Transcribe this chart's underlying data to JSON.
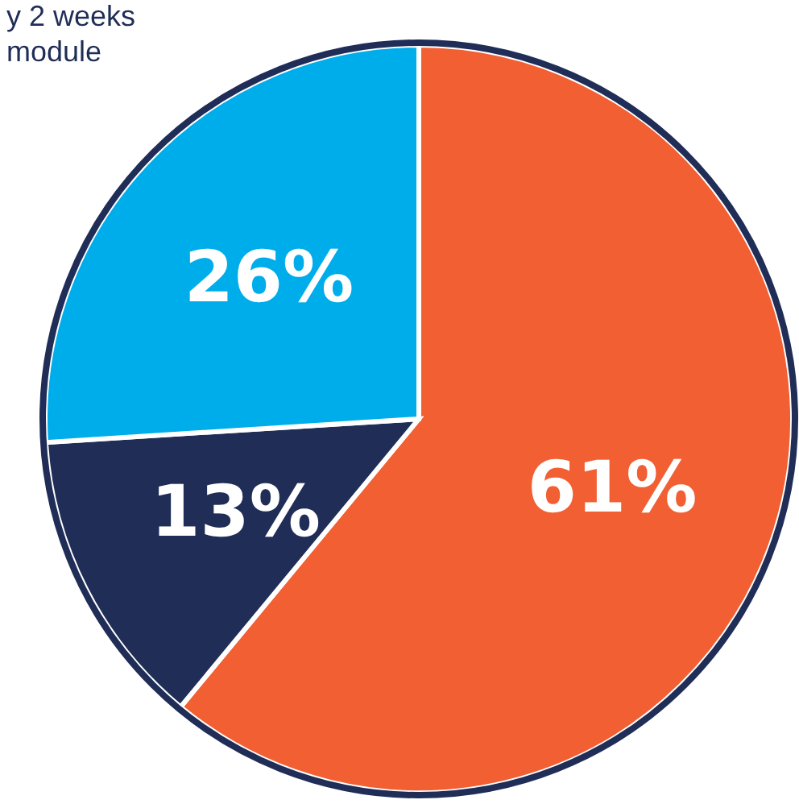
{
  "chart_data": {
    "type": "pie",
    "categories": [
      null,
      null,
      null
    ],
    "values": [
      61,
      13,
      26
    ],
    "colors": [
      "#f15f33",
      "#1f2d57",
      "#00adeb"
    ],
    "value_labels": [
      "61%",
      "13%",
      "26%"
    ],
    "annotations": [
      "y 2 weeks",
      "module"
    ]
  }
}
